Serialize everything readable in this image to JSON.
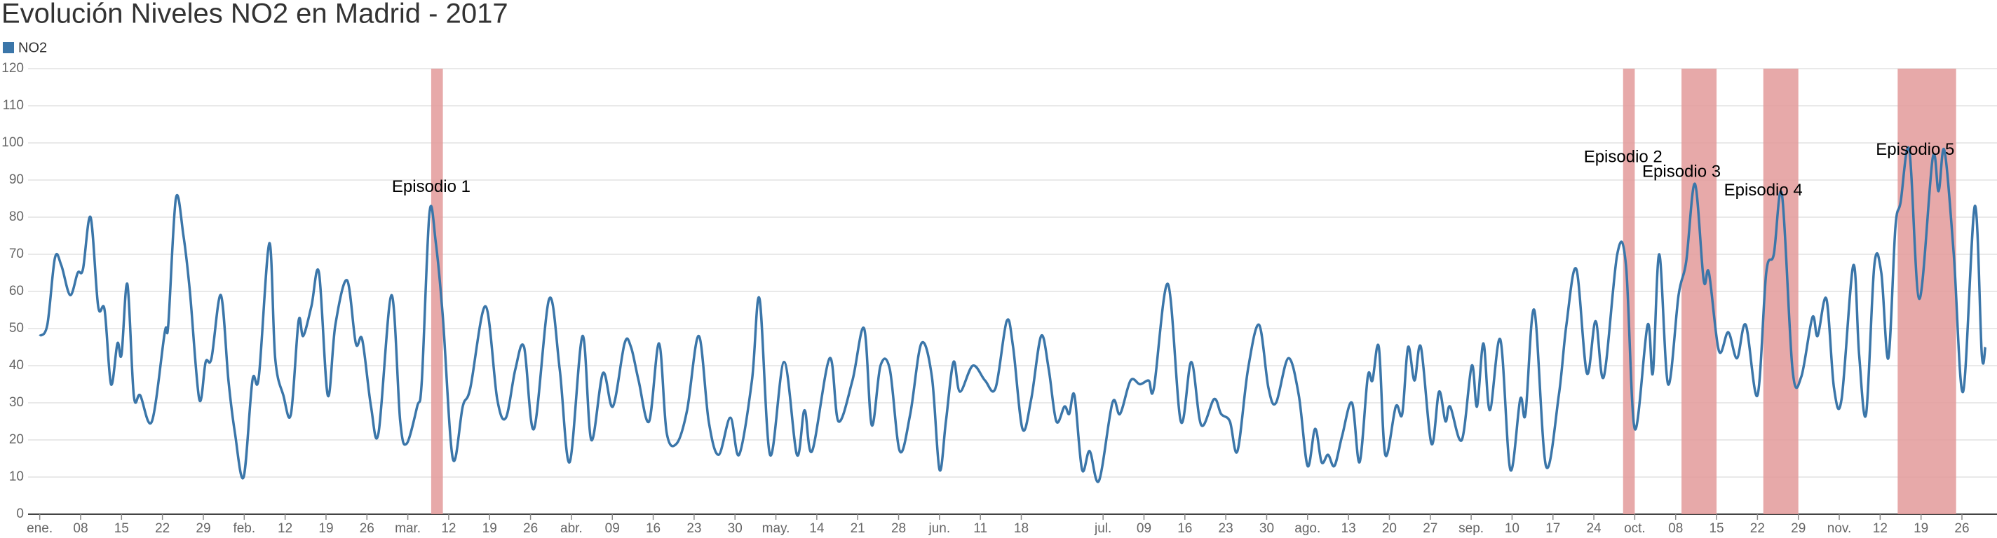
{
  "chart_data": {
    "type": "line",
    "title": "Evolución Niveles NO2 en Madrid - 2017",
    "series": [
      {
        "name": "NO2",
        "color": "#3b76a9",
        "values": [
          48,
          51,
          69,
          67,
          59,
          65,
          66,
          80,
          56,
          55,
          35,
          46,
          43,
          62,
          32,
          32,
          25,
          49,
          51,
          85,
          75,
          60,
          31,
          41,
          42,
          59,
          36,
          22,
          10,
          36,
          37,
          73,
          42,
          32,
          27,
          52,
          48,
          56,
          65,
          32,
          51,
          63,
          46,
          47,
          29,
          22,
          59,
          25,
          19,
          29,
          36,
          81,
          73,
          53,
          15,
          29,
          34,
          56,
          31,
          26,
          39,
          45,
          23,
          58,
          39,
          14,
          48,
          20,
          38,
          29,
          46,
          45,
          36,
          25,
          46,
          22,
          19,
          28,
          48,
          25,
          16,
          26,
          16,
          36,
          58,
          16,
          41,
          16,
          28,
          17,
          42,
          25,
          36,
          50,
          24,
          40,
          39,
          17,
          27,
          46,
          37,
          12,
          25,
          41,
          33,
          40,
          36,
          34,
          52,
          45,
          23,
          31,
          48,
          39,
          25,
          29,
          27,
          32,
          12,
          17,
          9,
          30,
          27,
          36,
          35,
          36,
          34,
          62,
          25,
          41,
          24,
          31,
          27,
          25,
          17,
          39,
          51,
          34,
          30,
          42,
          32,
          13,
          23,
          14,
          16,
          13,
          21,
          30,
          14,
          37,
          36,
          45,
          16,
          29,
          27,
          45,
          36,
          45,
          19,
          33,
          25,
          29,
          20,
          40,
          29,
          46,
          28,
          47,
          12,
          31,
          27,
          55,
          13,
          32,
          51,
          66,
          38,
          52,
          37,
          70,
          67,
          23,
          51,
          38,
          70,
          35,
          59,
          68,
          89,
          63,
          65,
          44,
          49,
          42,
          51,
          32,
          65,
          70,
          86,
          39,
          37,
          53,
          48,
          58,
          34,
          31,
          67,
          43,
          27,
          67,
          65,
          42,
          77,
          84,
          98,
          58,
          96,
          87,
          98,
          70,
          33,
          83,
          43,
          45
        ]
      }
    ],
    "x": [
      0,
      1.3,
      2.6,
      3.7,
      5.2,
      6.5,
      7.4,
      8.7,
      10,
      11.1,
      12.2,
      13.3,
      14,
      15,
      16.1,
      17.2,
      19.2,
      21.4,
      22,
      23.3,
      24.6,
      25.7,
      27.3,
      28.4,
      29.4,
      31,
      32.3,
      33.4,
      34.9,
      36.4,
      37.5,
      39.3,
      40.3,
      41.7,
      43,
      44.3,
      45.1,
      46.5,
      47.8,
      49.3,
      50.6,
      52.6,
      54.1,
      55.2,
      56.7,
      58,
      60.2,
      61.7,
      62.8,
      64.6,
      65.4,
      66.7,
      67.8,
      69,
      70.7,
      72.4,
      73.7,
      76.3,
      78.3,
      79.8,
      81.4,
      82.9,
      84.6,
      87.2,
      89,
      90.7,
      92.9,
      94.4,
      96.4,
      98.1,
      100.1,
      101.2,
      102.5,
      104.3,
      106,
      107.3,
      109,
      110.8,
      112.8,
      114.5,
      116.2,
      118.2,
      119.7,
      121.9,
      123.2,
      125,
      127.4,
      129.6,
      130.9,
      132.2,
      135.2,
      136.7,
      139.1,
      141.1,
      142.4,
      143.9,
      145.5,
      147.2,
      149,
      150.9,
      152.7,
      154,
      155.1,
      156.4,
      157.5,
      159.7,
      161.8,
      163.6,
      165.5,
      166.6,
      168.2,
      169.7,
      171.4,
      172.7,
      174,
      175.4,
      176.2,
      177.1,
      178.4,
      179.7,
      181.3,
      183.6,
      184.9,
      186.7,
      188.3,
      189.8,
      190.7,
      193.1,
      195.3,
      197.1,
      198.8,
      201,
      202.2,
      203.7,
      205,
      206.8,
      208.7,
      210.3,
      211.6,
      213.7,
      215.5,
      217,
      218.3,
      219.4,
      220.5,
      221.6,
      222.9,
      224.6,
      225.9,
      227.3,
      228.1,
      229.2,
      230.3,
      232.1,
      233.2,
      234.2,
      235.3,
      236.4,
      238.2,
      239.5,
      240.6,
      241.4,
      243.4,
      245.1,
      246,
      247.1,
      248.2,
      250,
      251.7,
      253.4,
      254.3,
      255.8,
      257.8,
      260,
      261.3,
      263,
      264.8,
      266.3,
      267.7,
      270,
      271.5,
      273,
      275.2,
      276.1,
      277.2,
      278.7,
      280.5,
      281.8,
      283.3,
      284.8,
      285.7,
      287.4,
      289,
      290.5,
      292,
      294,
      295.5,
      296.8,
      298.2,
      300,
      301.5,
      303.4,
      304.3,
      305.8,
      307.1,
      308.4,
      310.4,
      311.4,
      312.6,
      314,
      315.2,
      316.4,
      317.6,
      318.5,
      320,
      321.7,
      324,
      325,
      326,
      327.6,
      329.2,
      331.2,
      332.4,
      333
    ],
    "xlim": [
      -2,
      335
    ],
    "xticks": [
      {
        "value": 0,
        "label": "ene."
      },
      {
        "value": 7,
        "label": "08"
      },
      {
        "value": 14,
        "label": "15"
      },
      {
        "value": 21,
        "label": "22"
      },
      {
        "value": 28,
        "label": "29"
      },
      {
        "value": 35,
        "label": "feb."
      },
      {
        "value": 42,
        "label": "12"
      },
      {
        "value": 49,
        "label": "19"
      },
      {
        "value": 56,
        "label": "26"
      },
      {
        "value": 63,
        "label": "mar."
      },
      {
        "value": 70,
        "label": "12"
      },
      {
        "value": 77,
        "label": "19"
      },
      {
        "value": 84,
        "label": "26"
      },
      {
        "value": 91,
        "label": "abr."
      },
      {
        "value": 98,
        "label": "09"
      },
      {
        "value": 105,
        "label": "16"
      },
      {
        "value": 112,
        "label": "23"
      },
      {
        "value": 119,
        "label": "30"
      },
      {
        "value": 126,
        "label": "may."
      },
      {
        "value": 133,
        "label": "14"
      },
      {
        "value": 140,
        "label": "21"
      },
      {
        "value": 147,
        "label": "28"
      },
      {
        "value": 154,
        "label": "jun."
      },
      {
        "value": 161,
        "label": "11"
      },
      {
        "value": 168,
        "label": "18"
      },
      {
        "value": 182,
        "label": "jul."
      },
      {
        "value": 189,
        "label": "09"
      },
      {
        "value": 196,
        "label": "16"
      },
      {
        "value": 203,
        "label": "23"
      },
      {
        "value": 210,
        "label": "30"
      },
      {
        "value": 217,
        "label": "ago."
      },
      {
        "value": 224,
        "label": "13"
      },
      {
        "value": 231,
        "label": "20"
      },
      {
        "value": 238,
        "label": "27"
      },
      {
        "value": 245,
        "label": "sep."
      },
      {
        "value": 252,
        "label": "10"
      },
      {
        "value": 259,
        "label": "17"
      },
      {
        "value": 266,
        "label": "24"
      },
      {
        "value": 273,
        "label": "oct."
      },
      {
        "value": 280,
        "label": "08"
      },
      {
        "value": 287,
        "label": "15"
      },
      {
        "value": 294,
        "label": "22"
      },
      {
        "value": 301,
        "label": "29"
      },
      {
        "value": 308,
        "label": "nov."
      },
      {
        "value": 315,
        "label": "12"
      },
      {
        "value": 322,
        "label": "19"
      },
      {
        "value": 329,
        "label": "26"
      }
    ],
    "ylim": [
      0,
      120
    ],
    "yticks": [
      0,
      10,
      20,
      30,
      40,
      50,
      60,
      70,
      80,
      90,
      100,
      110,
      120
    ],
    "grid": true,
    "bands": [
      [
        67,
        69
      ],
      [
        271,
        273
      ],
      [
        281,
        287
      ],
      [
        295,
        301
      ],
      [
        318,
        328
      ]
    ],
    "band_color": "#e39a9a",
    "annotations": [
      {
        "text": "Episodio 1",
        "x": 67,
        "y": 88
      },
      {
        "text": "Episodio 2",
        "x": 271,
        "y": 96
      },
      {
        "text": "Episodio 3",
        "x": 281,
        "y": 92
      },
      {
        "text": "Episodio 4",
        "x": 295,
        "y": 87
      },
      {
        "text": "Episodio 5",
        "x": 321,
        "y": 98
      }
    ]
  }
}
